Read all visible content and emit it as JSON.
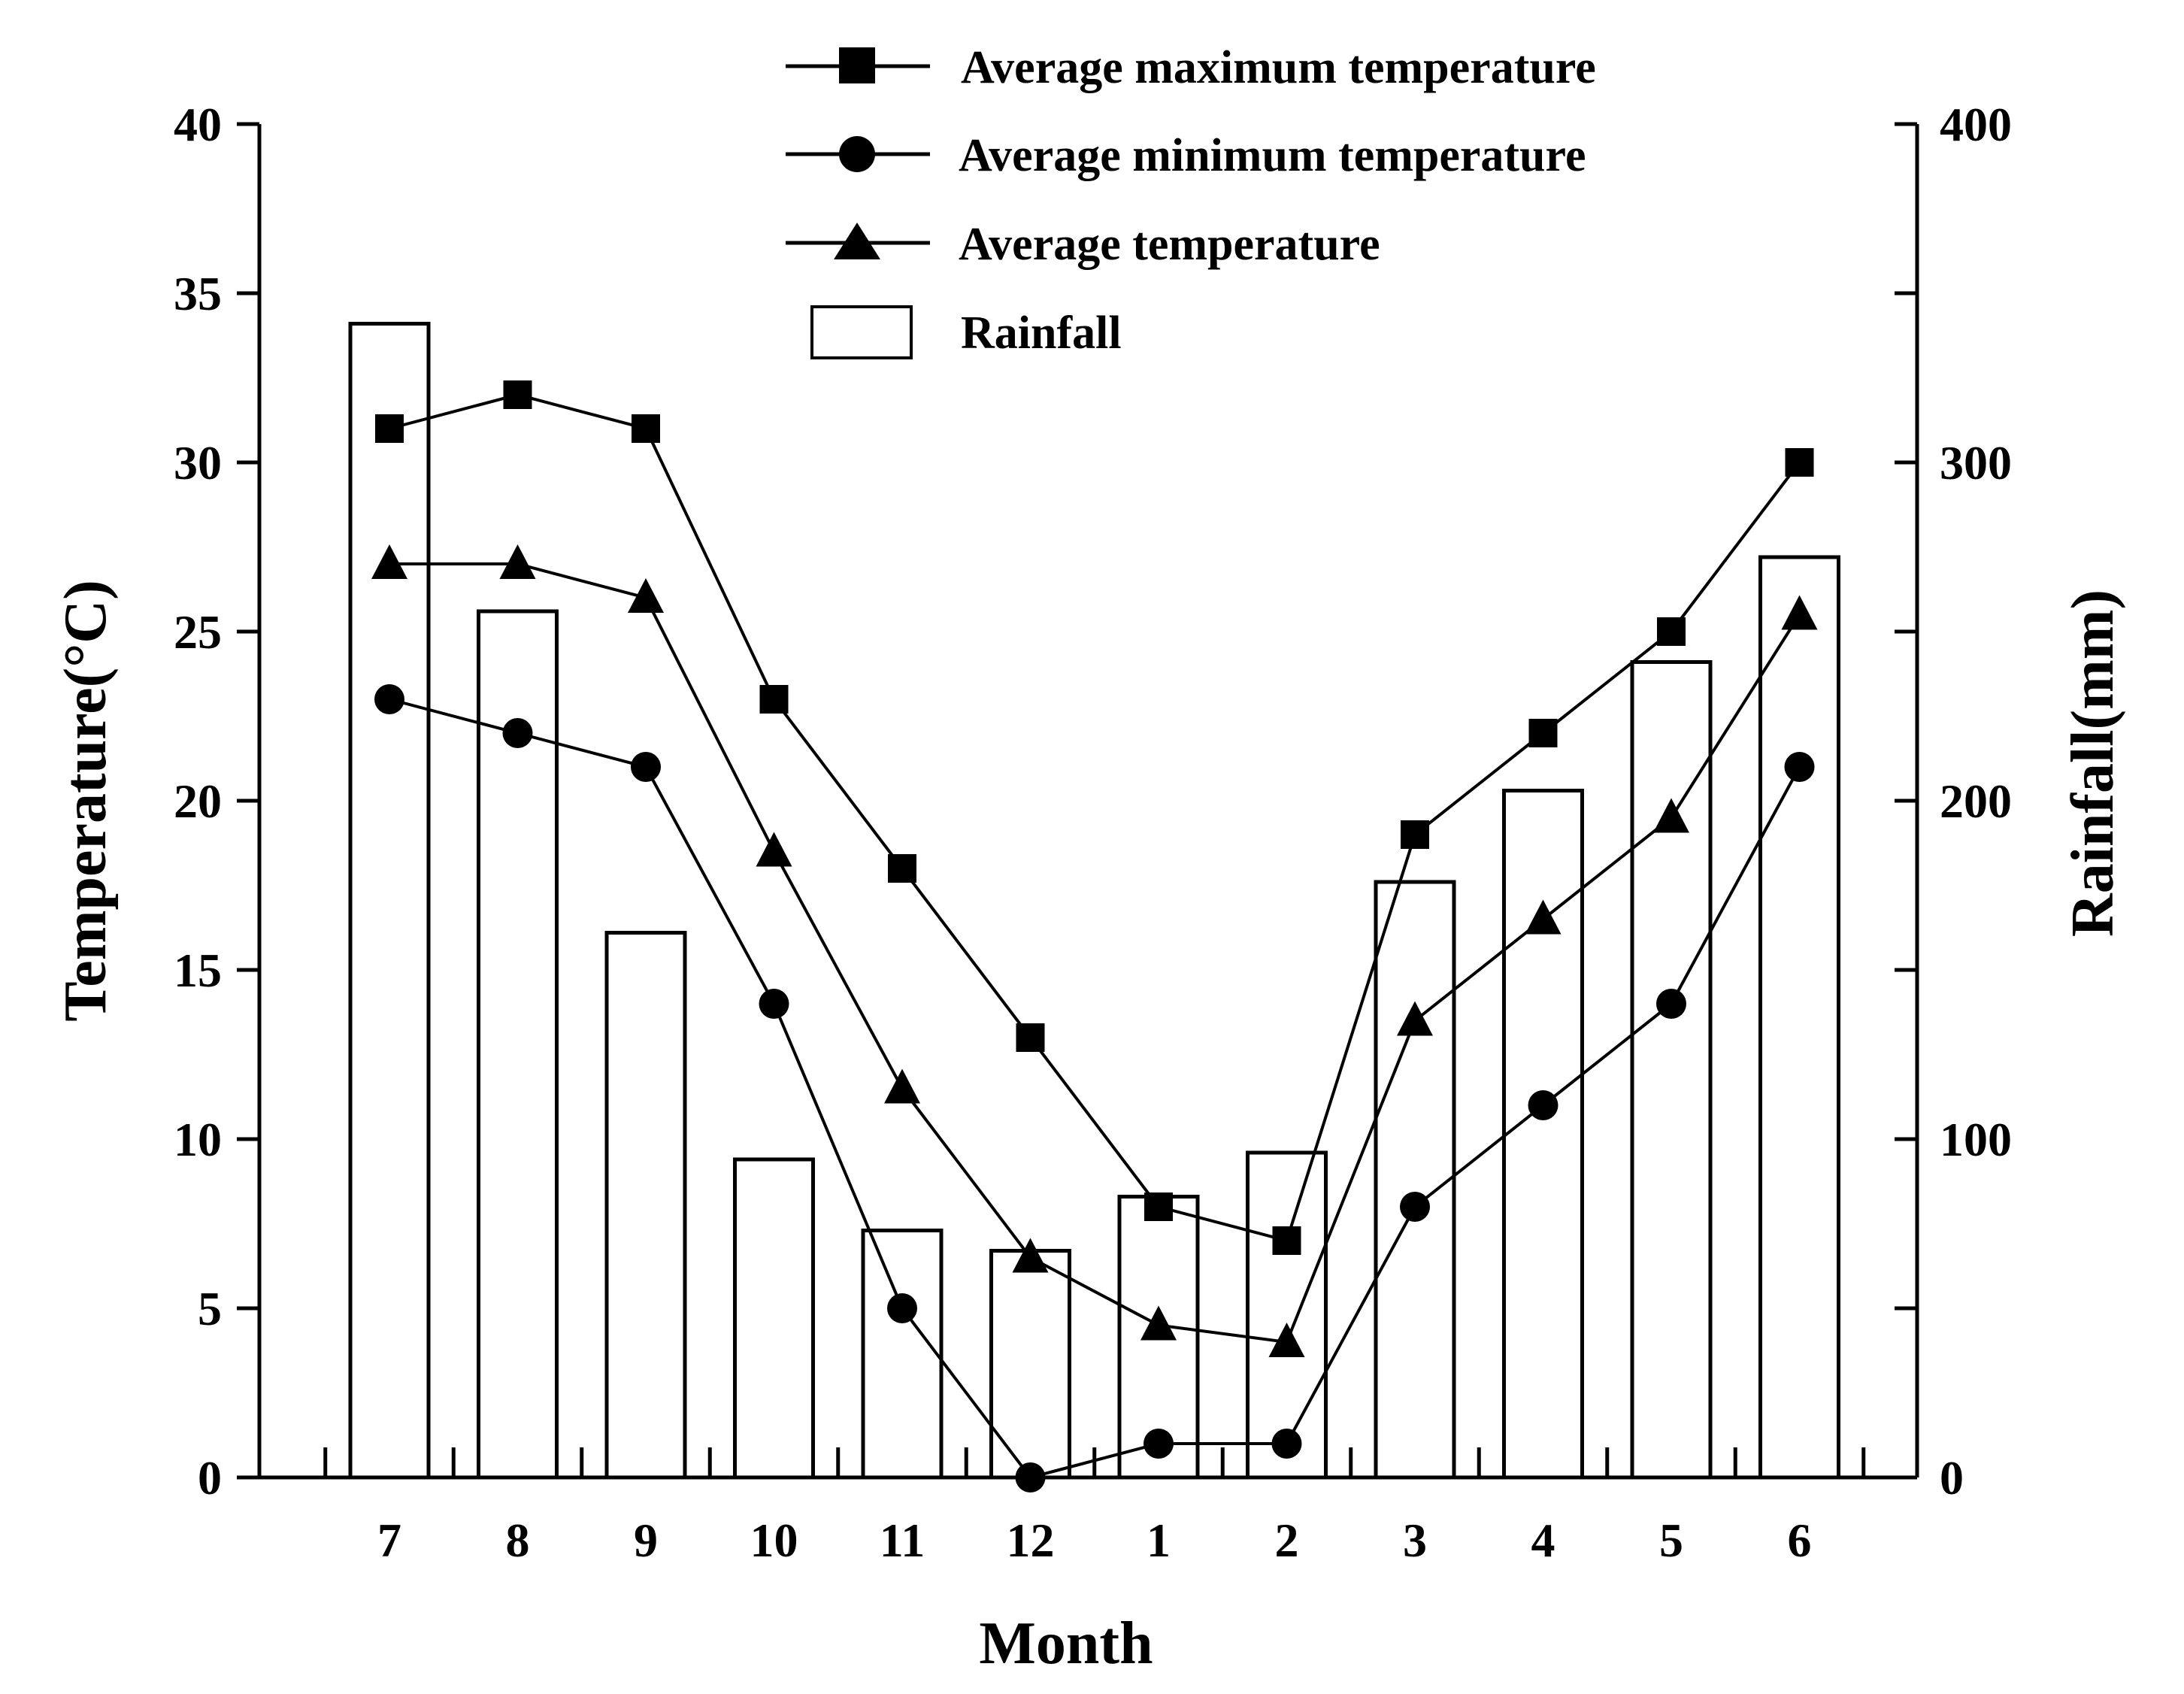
{
  "chart_data": {
    "type": "bar+line",
    "title": "",
    "categories": [
      "7",
      "8",
      "9",
      "10",
      "11",
      "12",
      "1",
      "2",
      "3",
      "4",
      "5",
      "6"
    ],
    "xlabel": "Month",
    "ylabel_left": "Temperature(°C)",
    "ylabel_right": "Rainfall(mm)",
    "ylim_left": [
      0,
      40
    ],
    "ylim_right": [
      0,
      400
    ],
    "yticks_left": [
      "0",
      "5",
      "10",
      "15",
      "20",
      "25",
      "30",
      "35",
      "40"
    ],
    "yticks_right": [
      "0",
      "100",
      "200",
      "300",
      "400"
    ],
    "legend_position": "top-center",
    "grid": false,
    "bars": {
      "name": "Rainfall",
      "axis": "right",
      "values": [
        341,
        256,
        161,
        94,
        73,
        67,
        83,
        96,
        176,
        203,
        241,
        272
      ]
    },
    "series": [
      {
        "name": "Average maximum temperature",
        "marker": "square",
        "axis": "left",
        "values": [
          31,
          32,
          31,
          23,
          18,
          13,
          8,
          7,
          19,
          22,
          25,
          30
        ]
      },
      {
        "name": "Average minimum temperature",
        "marker": "circle",
        "axis": "left",
        "values": [
          23,
          22,
          21,
          14,
          5,
          0,
          1,
          1,
          8,
          11,
          14,
          21
        ]
      },
      {
        "name": "Average temperature",
        "marker": "triangle",
        "axis": "left",
        "values": [
          27,
          27,
          26,
          18.5,
          11.5,
          6.5,
          4.5,
          4,
          13.5,
          16.5,
          19.5,
          25.5
        ]
      }
    ]
  }
}
